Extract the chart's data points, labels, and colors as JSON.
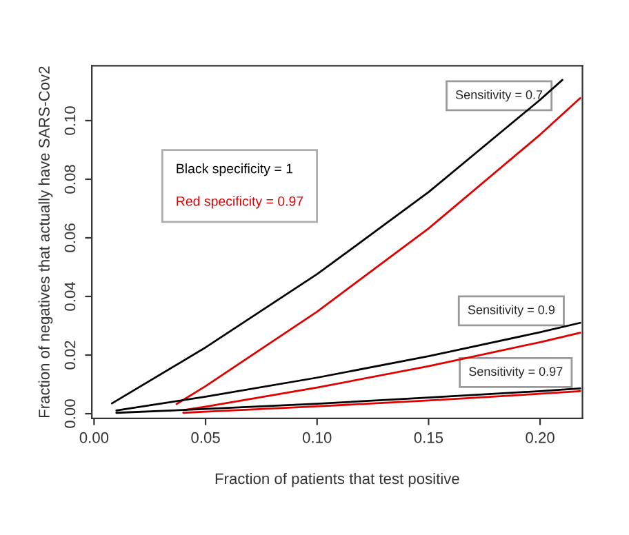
{
  "chart_data": {
    "type": "line",
    "xlabel": "Fraction of patients that test positive",
    "ylabel": "Fraction of negatives that actually have SARS-Cov2",
    "xlim": [
      -0.001,
      0.219
    ],
    "ylim": [
      -0.0016,
      0.1187
    ],
    "xticks": [
      {
        "value": 0,
        "label": "0.00"
      },
      0.05,
      {
        "value": 0.1,
        "label": "0.10"
      },
      0.15,
      {
        "value": 0.2,
        "label": "0.20"
      }
    ],
    "yticks": [
      {
        "value": 0,
        "label": "0.00"
      },
      0.02,
      0.04,
      0.06,
      0.08,
      {
        "value": 0.1,
        "label": "0.10"
      }
    ],
    "grid": false,
    "legend": "top left",
    "marker": "none",
    "line_style": "solid",
    "series": [
      {
        "name": "Black specificity = 1",
        "color": "#000000",
        "x": [
          0.008,
          0.05,
          0.1,
          0.15,
          0.2,
          0.21
        ],
        "values": [
          0.0035,
          0.0226,
          0.0476,
          0.0756,
          0.1071,
          0.1139
        ]
      },
      {
        "name": "Red specificity = 0.97",
        "color": "#e00000",
        "x": [
          0.037,
          0.05,
          0.1,
          0.15,
          0.2,
          0.218
        ],
        "values": [
          0.0033,
          0.0094,
          0.0348,
          0.0632,
          0.0952,
          0.1077
        ]
      },
      {
        "color": "#000000",
        "x": [
          0.01,
          0.05,
          0.1,
          0.15,
          0.2,
          0.218
        ],
        "values": [
          0.0011,
          0.0058,
          0.0123,
          0.0196,
          0.0278,
          0.031
        ]
      },
      {
        "color": "#e00000",
        "x": [
          0.04,
          0.05,
          0.1,
          0.15,
          0.2,
          0.218
        ],
        "values": [
          0.0012,
          0.0024,
          0.0089,
          0.0162,
          0.0244,
          0.0276
        ]
      },
      {
        "color": "#000000",
        "x": [
          0.01,
          0.05,
          0.1,
          0.15,
          0.2,
          0.218
        ],
        "values": [
          0.0003,
          0.0016,
          0.0034,
          0.0055,
          0.0077,
          0.0086
        ]
      },
      {
        "color": "#e00000",
        "x": [
          0.04,
          0.05,
          0.1,
          0.15,
          0.2,
          0.218
        ],
        "values": [
          0.0003,
          0.0007,
          0.0025,
          0.0045,
          0.0068,
          0.0077
        ]
      }
    ],
    "annotations": [
      "Sensitivity = 0.7",
      "Sensitivity = 0.9",
      "Sensitivity = 0.97"
    ]
  }
}
